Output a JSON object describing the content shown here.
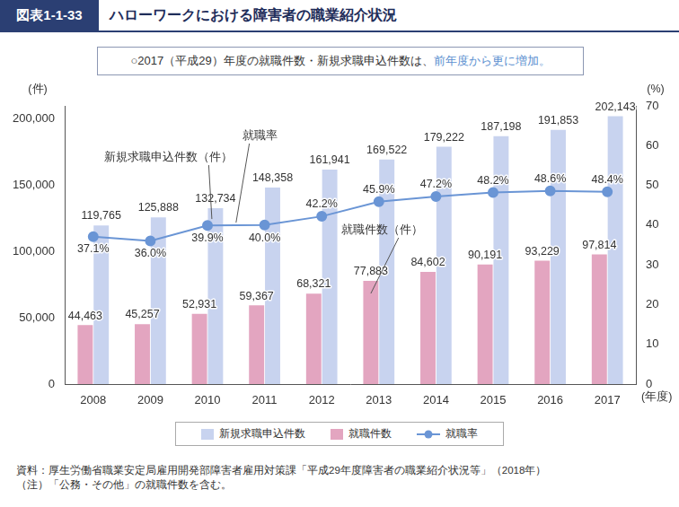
{
  "chart_data": {
    "type": "bar",
    "figure_label": "図表1-1-33",
    "title": "ハローワークにおける障害者の職業紹介状況",
    "subtitle": [
      "○2017（平成29）年度の就職件数・新規求職申込件数は、",
      "前年度から更に増加。"
    ],
    "categories": [
      "2008",
      "2009",
      "2010",
      "2011",
      "2012",
      "2013",
      "2014",
      "2015",
      "2016",
      "2017"
    ],
    "x_label": "(年度)",
    "y_label": "(件)",
    "y2_label": "(%)",
    "series": [
      {
        "name": "新規求職申込件数",
        "type": "bar",
        "color": "#c8d3ef",
        "values": [
          119765,
          125888,
          132734,
          148358,
          161941,
          169522,
          179222,
          187198,
          191853,
          202143
        ],
        "value_labels": [
          "119,765",
          "125,888",
          "132,734",
          "148,358",
          "161,941",
          "169,522",
          "179,222",
          "187,198",
          "191,853",
          "202,143"
        ]
      },
      {
        "name": "就職件数",
        "type": "bar",
        "color": "#e3a5c0",
        "values": [
          44463,
          45257,
          52931,
          59367,
          68321,
          77883,
          84602,
          90191,
          93229,
          97814
        ],
        "value_labels": [
          "44,463",
          "45,257",
          "52,931",
          "59,367",
          "68,321",
          "77,883",
          "84,602",
          "90,191",
          "93,229",
          "97,814"
        ]
      },
      {
        "name": "就職率",
        "type": "line",
        "axis": "y2",
        "color": "#6a95d5",
        "marker": "circle",
        "values": [
          37.1,
          36.0,
          39.9,
          40.0,
          42.2,
          45.9,
          47.2,
          48.2,
          48.6,
          48.4
        ],
        "value_labels": [
          "37.1%",
          "36.0%",
          "39.9%",
          "40.0%",
          "42.2%",
          "45.9%",
          "47.2%",
          "48.2%",
          "48.6%",
          "48.4%"
        ]
      }
    ],
    "ylim": [
      0,
      210000
    ],
    "yticks": [
      0,
      {
        "value": 50000,
        "label": "50,000"
      },
      {
        "value": 100000,
        "label": "100,000"
      },
      {
        "value": 150000,
        "label": "150,000"
      },
      {
        "value": 200000,
        "label": "200,000"
      }
    ],
    "y2lim": [
      0,
      70
    ],
    "y2ticks": [
      0,
      10,
      20,
      30,
      40,
      50,
      60,
      70
    ],
    "grid": false,
    "legend": "bottom",
    "data_labels": true,
    "annotations": [
      "就職率",
      "新規求職申込件数（件）",
      "就職件数（件）"
    ],
    "source": [
      "資料：厚生労働省職業安定局雇用開発部障害者雇用対策課「平成29年度障害者の職業紹介状況等」（2018年）",
      "（注）「公務・その他」の就職件数を含む。"
    ]
  }
}
